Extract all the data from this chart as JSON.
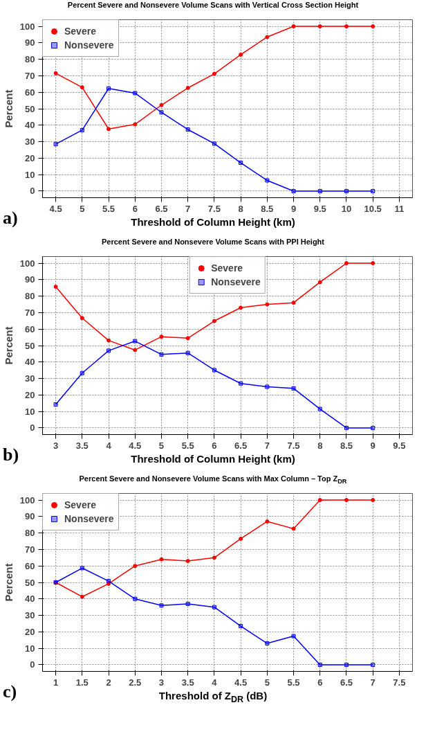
{
  "chart_data": [
    {
      "type": "line",
      "title": "Percent Severe and Nonsevere Volume Scans with Vertical Cross Section Height",
      "xlabel": "Threshold of Column Height (km)",
      "ylabel": "Percent",
      "annotations": [
        "a)"
      ],
      "x": [
        4.5,
        5,
        5.5,
        6,
        6.5,
        7,
        7.5,
        8,
        8.5,
        9,
        9.5,
        10,
        10.5
      ],
      "series": [
        {
          "name": "Severe",
          "color": "#ff0000",
          "marker": "circle",
          "values": [
            71.5,
            63,
            37.7,
            40.5,
            52.2,
            62.6,
            71.2,
            82.8,
            93.5,
            100,
            100,
            100,
            100
          ]
        },
        {
          "name": "Nonsevere",
          "color": "#0000ff",
          "marker": "square",
          "values": [
            28.5,
            37,
            62.3,
            59.5,
            47.8,
            37.4,
            28.8,
            17.2,
            6.5,
            0,
            0,
            0,
            0
          ]
        }
      ],
      "xlim": [
        4.25,
        11.25
      ],
      "xticks": [
        4.5,
        5,
        5.5,
        6,
        6.5,
        7,
        7.5,
        8,
        8.5,
        9,
        9.5,
        10,
        10.5,
        11
      ],
      "ylim": [
        -4,
        104
      ],
      "yticks": [
        0,
        10,
        20,
        30,
        40,
        50,
        60,
        70,
        80,
        90,
        100
      ],
      "grid": true,
      "legend": "top left"
    },
    {
      "type": "line",
      "title": "Percent Severe and Nonsevere Volume Scans with PPI Height",
      "xlabel": "Threshold of Column Height (km)",
      "ylabel": "Percent",
      "annotations": [
        "b)"
      ],
      "x": [
        3,
        3.5,
        4,
        4.5,
        5,
        5.5,
        6,
        6.5,
        7,
        7.5,
        8,
        8.5,
        9
      ],
      "series": [
        {
          "name": "Severe",
          "color": "#ff0000",
          "marker": "circle",
          "values": [
            85.7,
            66.7,
            53.1,
            47.3,
            55.4,
            54.5,
            64.9,
            73,
            75,
            76,
            88.5,
            100,
            100
          ]
        },
        {
          "name": "Nonsevere",
          "color": "#0000ff",
          "marker": "square",
          "values": [
            14.3,
            33.3,
            46.9,
            52.7,
            44.6,
            45.5,
            35.1,
            27,
            25,
            24,
            11.5,
            0,
            0
          ]
        }
      ],
      "xlim": [
        2.75,
        9.75
      ],
      "xticks": [
        3,
        3.5,
        4,
        4.5,
        5,
        5.5,
        6,
        6.5,
        7,
        7.5,
        8,
        8.5,
        9,
        9.5
      ],
      "ylim": [
        -4,
        104
      ],
      "yticks": [
        0,
        10,
        20,
        30,
        40,
        50,
        60,
        70,
        80,
        90,
        100
      ],
      "grid": true,
      "legend": "top"
    },
    {
      "type": "line",
      "title": "Percent Severe and Nonsevere Volume Scans with Max Column – Top Z$_{DR}$",
      "xlabel": "Threshold of Z$_{DR}$ (dB)",
      "ylabel": "Percent",
      "annotations": [
        "c)"
      ],
      "x": [
        1,
        1.5,
        2,
        2.5,
        3,
        3.5,
        4,
        4.5,
        5,
        5.5,
        6,
        6.5,
        7
      ],
      "series": [
        {
          "name": "Severe",
          "color": "#ff0000",
          "marker": "circle",
          "values": [
            50,
            41.3,
            49.2,
            60,
            64,
            63,
            65,
            76.5,
            87,
            82.6,
            100,
            100,
            100
          ]
        },
        {
          "name": "Nonsevere",
          "color": "#0000ff",
          "marker": "square",
          "values": [
            50,
            58.7,
            50.8,
            40,
            36,
            37,
            35,
            23.5,
            13,
            17.4,
            0,
            0,
            0
          ]
        }
      ],
      "xlim": [
        0.75,
        7.75
      ],
      "xticks": [
        1,
        1.5,
        2,
        2.5,
        3,
        3.5,
        4,
        4.5,
        5,
        5.5,
        6,
        6.5,
        7,
        7.5
      ],
      "ylim": [
        -4,
        104
      ],
      "yticks": [
        0,
        10,
        20,
        30,
        40,
        50,
        60,
        70,
        80,
        90,
        100
      ],
      "grid": true,
      "legend": "top left"
    }
  ]
}
